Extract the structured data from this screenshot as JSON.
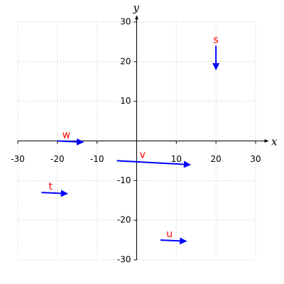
{
  "chart_data": {
    "type": "quiver",
    "xlabel": "x",
    "ylabel": "y",
    "xlim": [
      -30,
      30
    ],
    "ylim": [
      -30,
      30
    ],
    "xticks": [
      -30,
      -20,
      -10,
      10,
      20,
      30
    ],
    "yticks": [
      -30,
      -20,
      -10,
      10,
      20,
      30
    ],
    "grid": true,
    "arrow_color": "#0000ff",
    "label_color": "#ff0000",
    "vectors": [
      {
        "name": "s",
        "x": 20,
        "y": 24,
        "dx": 0,
        "dy": -6
      },
      {
        "name": "w",
        "x": -20,
        "y": 0,
        "dx": 6.5,
        "dy": -0.3
      },
      {
        "name": "v",
        "x": -5,
        "y": -5,
        "dx": 18.5,
        "dy": -1
      },
      {
        "name": "t",
        "x": -24,
        "y": -13,
        "dx": 6.5,
        "dy": -0.3
      },
      {
        "name": "u",
        "x": 6,
        "y": -25,
        "dx": 6.5,
        "dy": -0.3
      }
    ]
  }
}
